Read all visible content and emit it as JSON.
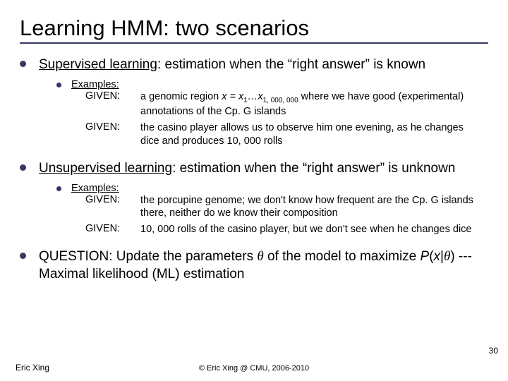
{
  "title": "Learning HMM: two scenarios",
  "sections": [
    {
      "heading_underlined": "Supervised learning",
      "heading_rest": ": estimation when the “right answer” is known",
      "examples_label": "Examples:",
      "givens": [
        {
          "label": "GIVEN:",
          "text_pre": "a genomic region ",
          "formula": "x = x",
          "sub1": "1",
          "dots": "…x",
          "sub2": "1, 000, 000",
          "text_post": " where we have good (experimental) annotations of the Cp. G islands"
        },
        {
          "label": "GIVEN:",
          "text": "the casino player allows us to observe him one evening, as he changes dice and produces 10, 000 rolls"
        }
      ]
    },
    {
      "heading_underlined": "Unsupervised learning",
      "heading_rest": ": estimation when the “right answer” is unknown",
      "examples_label": "Examples:",
      "givens": [
        {
          "label": "GIVEN:",
          "text": "the porcupine genome; we don't know how frequent are the Cp. G islands there, neither do we know their composition"
        },
        {
          "label": "GIVEN:",
          "text": "10, 000 rolls of the casino player, but we don't see when he changes dice"
        }
      ]
    }
  ],
  "question": {
    "label": "QUESTION:",
    "part1": " Update the parameters ",
    "theta1": "θ",
    "part2": " of the model to maximize ",
    "px": "P",
    "open": "(",
    "xvar": "x",
    "bar": "|",
    "theta2": "θ",
    "close": ")",
    "part3": " --- Maximal likelihood (ML) estimation"
  },
  "footer": {
    "left": "Eric Xing",
    "center": "© Eric Xing @ CMU, 2006-2010",
    "page": "30"
  }
}
